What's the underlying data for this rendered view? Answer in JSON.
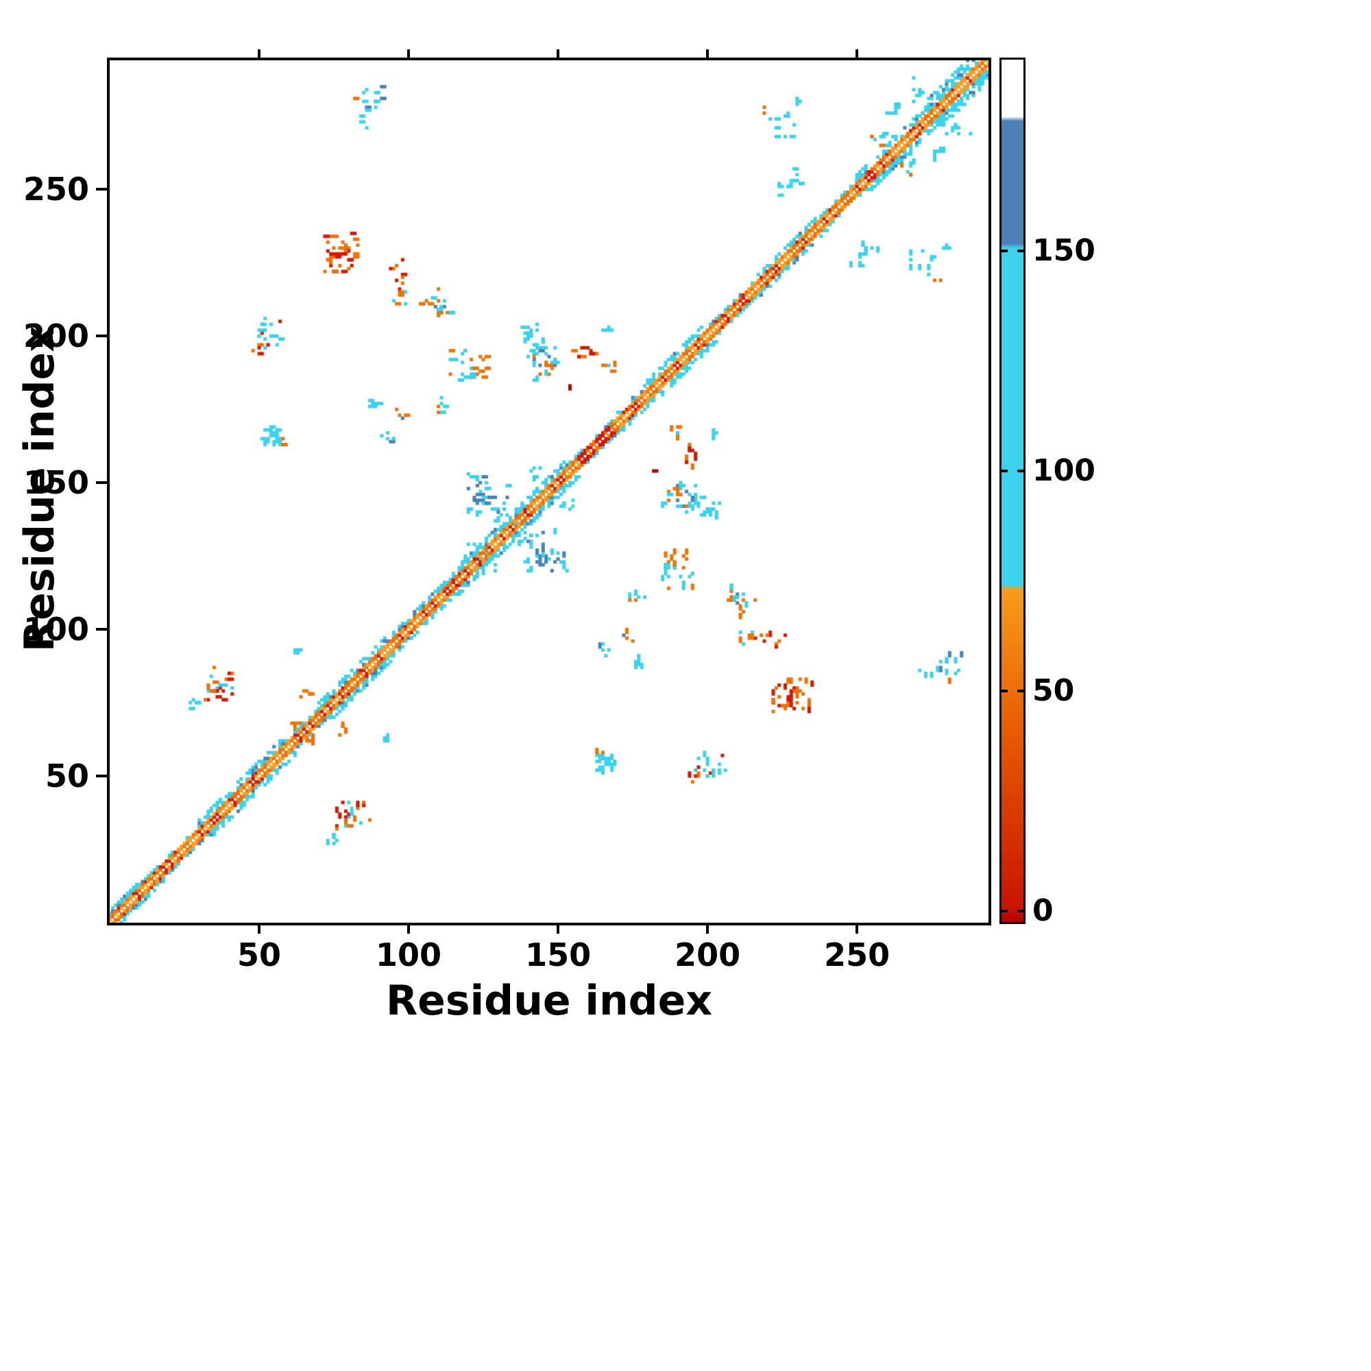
{
  "figure": {
    "background": "#ffffff"
  },
  "chart_data": {
    "type": "heatmap",
    "title": "",
    "xlabel": "Residue index",
    "ylabel": "Residue index",
    "x_range": [
      0,
      294
    ],
    "y_range": [
      0,
      294
    ],
    "x_ticks": [
      50,
      100,
      150,
      200,
      250
    ],
    "y_ticks": [
      50,
      100,
      150,
      200,
      250
    ],
    "grid": false,
    "legend": "colorbar-right",
    "symmetric": true,
    "palette": {
      "red": "#d41900",
      "darkred": "#a50c00",
      "orange": "#ed7307",
      "orange2": "#f59e28",
      "cyan": "#3dd2ec",
      "blue": "#4d80b4"
    },
    "colorbar": {
      "range": [
        -3,
        194
      ],
      "ticks": [
        0,
        50,
        100,
        150
      ],
      "stops": [
        {
          "v": -3,
          "color": "#b20000"
        },
        {
          "v": 0,
          "color": "#c81400"
        },
        {
          "v": 40,
          "color": "#e65b00"
        },
        {
          "v": 73,
          "color": "#f79c1c"
        },
        {
          "v": 74,
          "color": "#3dd2ec"
        },
        {
          "v": 151,
          "color": "#3dd2ec"
        },
        {
          "v": 152,
          "color": "#4d80b4"
        },
        {
          "v": 180,
          "color": "#4d80b4"
        },
        {
          "v": 181,
          "color": "#ffffff"
        },
        {
          "v": 194,
          "color": "#ffffff"
        }
      ]
    },
    "diagonal_band": {
      "core_offsets": [
        1,
        2
      ],
      "segments": [
        {
          "from": 0,
          "to": 14,
          "flank": 2
        },
        {
          "from": 14,
          "to": 30,
          "flank": 1
        },
        {
          "from": 30,
          "to": 58,
          "flank": 3
        },
        {
          "from": 58,
          "to": 70,
          "flank": 1
        },
        {
          "from": 70,
          "to": 92,
          "flank": 3
        },
        {
          "from": 92,
          "to": 112,
          "flank": 2
        },
        {
          "from": 112,
          "to": 152,
          "flank": 3
        },
        {
          "from": 152,
          "to": 157,
          "flank": 1
        },
        {
          "from": 157,
          "to": 168,
          "flank": 1,
          "core": "red"
        },
        {
          "from": 168,
          "to": 180,
          "flank": 2
        },
        {
          "from": 180,
          "to": 198,
          "flank": 3
        },
        {
          "from": 198,
          "to": 214,
          "flank": 1
        },
        {
          "from": 214,
          "to": 236,
          "flank": 2
        },
        {
          "from": 236,
          "to": 250,
          "flank": 1
        },
        {
          "from": 250,
          "to": 272,
          "flank": 3
        },
        {
          "from": 272,
          "to": 294,
          "flank": 5
        }
      ]
    },
    "off_diagonal_clusters": [
      {
        "x": 90,
        "y": 281,
        "w": 12,
        "h": 10,
        "n": 10,
        "colors": [
          "cyan",
          "blue",
          "cyan"
        ]
      },
      {
        "x": 77,
        "y": 229,
        "w": 12,
        "h": 14,
        "n": 40,
        "colors": [
          "orange",
          "orange",
          "red"
        ]
      },
      {
        "x": 96,
        "y": 221,
        "w": 6,
        "h": 10,
        "n": 9,
        "colors": [
          "orange",
          "red"
        ]
      },
      {
        "x": 97,
        "y": 212,
        "w": 5,
        "h": 6,
        "n": 6,
        "colors": [
          "orange",
          "cyan"
        ]
      },
      {
        "x": 54,
        "y": 201,
        "w": 9,
        "h": 10,
        "n": 20,
        "colors": [
          "cyan",
          "cyan",
          "red"
        ]
      },
      {
        "x": 49,
        "y": 196,
        "w": 4,
        "h": 4,
        "n": 4,
        "colors": [
          "red",
          "orange"
        ]
      },
      {
        "x": 111,
        "y": 209,
        "w": 4,
        "h": 4,
        "n": 4,
        "colors": [
          "orange"
        ]
      },
      {
        "x": 120,
        "y": 190,
        "w": 12,
        "h": 11,
        "n": 28,
        "colors": [
          "orange",
          "orange",
          "cyan"
        ]
      },
      {
        "x": 141,
        "y": 200,
        "w": 10,
        "h": 9,
        "n": 20,
        "colors": [
          "cyan"
        ]
      },
      {
        "x": 146,
        "y": 193,
        "w": 8,
        "h": 6,
        "n": 12,
        "colors": [
          "cyan",
          "blue"
        ]
      },
      {
        "x": 160,
        "y": 196,
        "w": 7,
        "h": 6,
        "n": 9,
        "colors": [
          "orange",
          "red"
        ]
      },
      {
        "x": 167,
        "y": 189,
        "w": 6,
        "h": 5,
        "n": 7,
        "colors": [
          "cyan",
          "orange"
        ]
      },
      {
        "x": 54,
        "y": 166,
        "w": 7,
        "h": 7,
        "n": 24,
        "colors": [
          "cyan"
        ]
      },
      {
        "x": 59,
        "y": 164,
        "w": 3,
        "h": 3,
        "n": 3,
        "colors": [
          "orange"
        ]
      },
      {
        "x": 93,
        "y": 166,
        "w": 5,
        "h": 5,
        "n": 6,
        "colors": [
          "cyan",
          "blue"
        ]
      },
      {
        "x": 97,
        "y": 173,
        "w": 4,
        "h": 4,
        "n": 4,
        "colors": [
          "blue",
          "orange"
        ]
      },
      {
        "x": 110,
        "y": 176,
        "w": 5,
        "h": 6,
        "n": 6,
        "colors": [
          "cyan",
          "orange"
        ]
      },
      {
        "x": 88,
        "y": 176,
        "w": 4,
        "h": 5,
        "n": 5,
        "colors": [
          "cyan"
        ]
      },
      {
        "x": 127,
        "y": 146,
        "w": 14,
        "h": 14,
        "n": 36,
        "colors": [
          "cyan",
          "cyan",
          "blue"
        ]
      },
      {
        "x": 133,
        "y": 137,
        "w": 8,
        "h": 8,
        "n": 12,
        "colors": [
          "cyan"
        ]
      },
      {
        "x": 122,
        "y": 128,
        "w": 6,
        "h": 8,
        "n": 9,
        "colors": [
          "cyan"
        ]
      },
      {
        "x": 144,
        "y": 152,
        "w": 6,
        "h": 6,
        "n": 7,
        "colors": [
          "cyan"
        ]
      },
      {
        "x": 166,
        "y": 202,
        "w": 4,
        "h": 4,
        "n": 4,
        "colors": [
          "cyan"
        ]
      },
      {
        "x": 194,
        "y": 155,
        "w": 3,
        "h": 3,
        "n": 2,
        "colors": [
          "orange"
        ]
      },
      {
        "x": 189,
        "y": 145,
        "w": 8,
        "h": 8,
        "n": 12,
        "colors": [
          "cyan",
          "orange"
        ]
      },
      {
        "x": 196,
        "y": 142,
        "w": 6,
        "h": 6,
        "n": 7,
        "colors": [
          "cyan"
        ]
      },
      {
        "x": 107,
        "y": 213,
        "w": 8,
        "h": 8,
        "n": 10,
        "colors": [
          "blue",
          "orange",
          "cyan"
        ]
      },
      {
        "x": 113,
        "y": 210,
        "w": 4,
        "h": 4,
        "n": 4,
        "colors": [
          "cyan"
        ]
      },
      {
        "x": 155,
        "y": 183,
        "w": 3,
        "h": 3,
        "n": 2,
        "colors": [
          "darkred",
          "red"
        ]
      },
      {
        "x": 37,
        "y": 81,
        "w": 10,
        "h": 12,
        "n": 26,
        "colors": [
          "orange",
          "red",
          "cyan"
        ]
      },
      {
        "x": 28,
        "y": 75,
        "w": 5,
        "h": 5,
        "n": 6,
        "colors": [
          "cyan",
          "blue"
        ]
      },
      {
        "x": 62,
        "y": 67,
        "w": 4,
        "h": 4,
        "n": 4,
        "colors": [
          "orange"
        ]
      },
      {
        "x": 66,
        "y": 79,
        "w": 4,
        "h": 4,
        "n": 5,
        "colors": [
          "orange"
        ]
      },
      {
        "x": 63,
        "y": 92,
        "w": 3,
        "h": 3,
        "n": 3,
        "colors": [
          "cyan"
        ]
      },
      {
        "x": 86,
        "y": 276,
        "w": 6,
        "h": 10,
        "n": 6,
        "colors": [
          "cyan"
        ]
      },
      {
        "x": 83,
        "y": 281,
        "w": 3,
        "h": 3,
        "n": 2,
        "colors": [
          "orange"
        ]
      },
      {
        "x": 230,
        "y": 255,
        "w": 8,
        "h": 6,
        "n": 9,
        "colors": [
          "cyan"
        ]
      },
      {
        "x": 226,
        "y": 250,
        "w": 5,
        "h": 5,
        "n": 5,
        "colors": [
          "cyan"
        ]
      },
      {
        "x": 231,
        "y": 280,
        "w": 4,
        "h": 3,
        "n": 3,
        "colors": [
          "cyan"
        ]
      },
      {
        "x": 225,
        "y": 272,
        "w": 8,
        "h": 10,
        "n": 10,
        "colors": [
          "cyan"
        ]
      },
      {
        "x": 219,
        "y": 277,
        "w": 3,
        "h": 3,
        "n": 2,
        "colors": [
          "orange"
        ]
      },
      {
        "x": 261,
        "y": 278,
        "w": 5,
        "h": 5,
        "n": 6,
        "colors": [
          "cyan"
        ]
      },
      {
        "x": 270,
        "y": 284,
        "w": 5,
        "h": 8,
        "n": 8,
        "colors": [
          "cyan"
        ]
      },
      {
        "x": 258,
        "y": 265,
        "w": 8,
        "h": 8,
        "n": 10,
        "colors": [
          "cyan",
          "orange"
        ]
      }
    ]
  }
}
